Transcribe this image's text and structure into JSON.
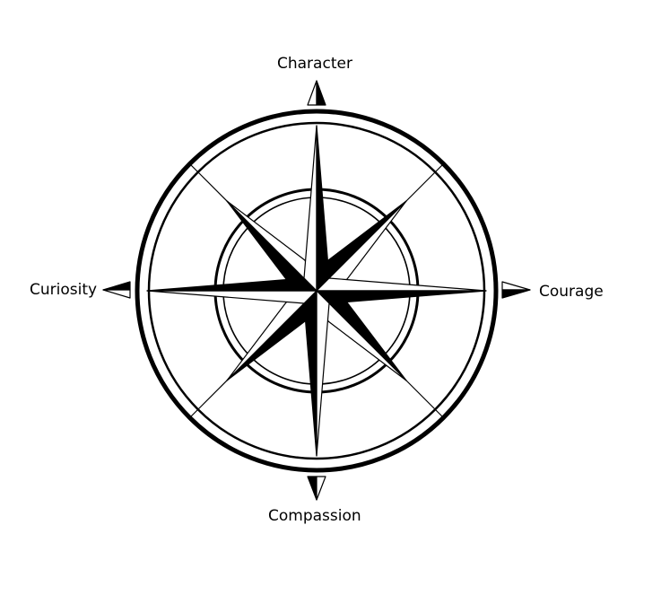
{
  "labels": {
    "north": "Character",
    "south": "Compassion",
    "west": "Curiosity",
    "east": "Courage"
  }
}
